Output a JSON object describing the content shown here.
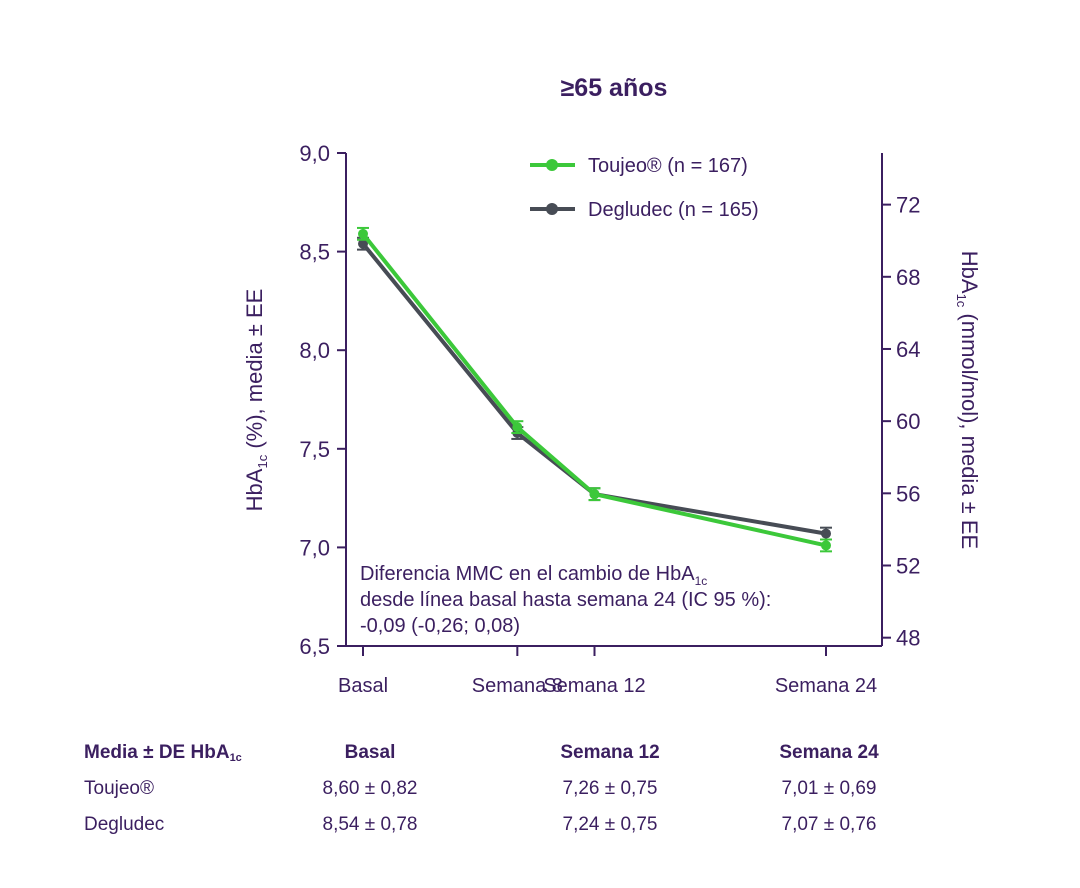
{
  "chart_data": {
    "type": "line",
    "title": "≥65 años",
    "x_categories": [
      "Basal",
      "Semana 8",
      "Semana 12",
      "Semana 24"
    ],
    "x_weeks": [
      0,
      8,
      12,
      24
    ],
    "y_left": {
      "label": "HbA1c (%), media ± EE",
      "label_main": "HbA",
      "label_sub": "1c",
      "label_rest": " (%), media ± EE",
      "range": [
        6.5,
        9.0
      ],
      "ticks": [
        "9,0",
        "8,5",
        "8,0",
        "7,5",
        "7,0",
        "6,5"
      ],
      "tick_values": [
        9.0,
        8.5,
        8.0,
        7.5,
        7.0,
        6.5
      ]
    },
    "y_right": {
      "label": "HbA1c (mmol/mol), media ± EE",
      "label_main": "HbA",
      "label_sub": "1c",
      "label_rest": " (mmol/mol), media ± EE",
      "ticks": [
        "72",
        "68",
        "64",
        "60",
        "56",
        "52",
        "48"
      ],
      "tick_values": [
        72,
        68,
        64,
        60,
        56,
        52,
        48
      ]
    },
    "series": [
      {
        "name": "Toujeo® (n = 167)",
        "color": "#3cc83a",
        "values": [
          8.59,
          7.61,
          7.27,
          7.01
        ],
        "se": [
          0.03,
          0.03,
          0.03,
          0.03
        ]
      },
      {
        "name": "Degludec (n = 165)",
        "color": "#474c55",
        "values": [
          8.54,
          7.58,
          7.27,
          7.07
        ],
        "se": [
          0.03,
          0.03,
          0.03,
          0.03
        ]
      }
    ],
    "annotation": {
      "line1_main": "Diferencia MMC en el cambio de HbA",
      "line1_sub": "1c",
      "line2": "desde línea basal hasta semana 24 (IC 95 %):",
      "line3": "-0,09 (-0,26; 0,08)"
    },
    "legend_position": "top-right"
  },
  "table": {
    "header_main": "Media ± DE HbA",
    "header_sub": "1c",
    "columns": [
      "Basal",
      "Semana 12",
      "Semana 24"
    ],
    "rows": [
      {
        "label": "Toujeo®",
        "values": [
          "8,60 ± 0,82",
          "7,26 ± 0,75",
          "7,01 ± 0,69"
        ]
      },
      {
        "label": "Degludec",
        "values": [
          "8,54 ± 0,78",
          "7,24 ± 0,75",
          "7,07 ± 0,76"
        ]
      }
    ]
  }
}
